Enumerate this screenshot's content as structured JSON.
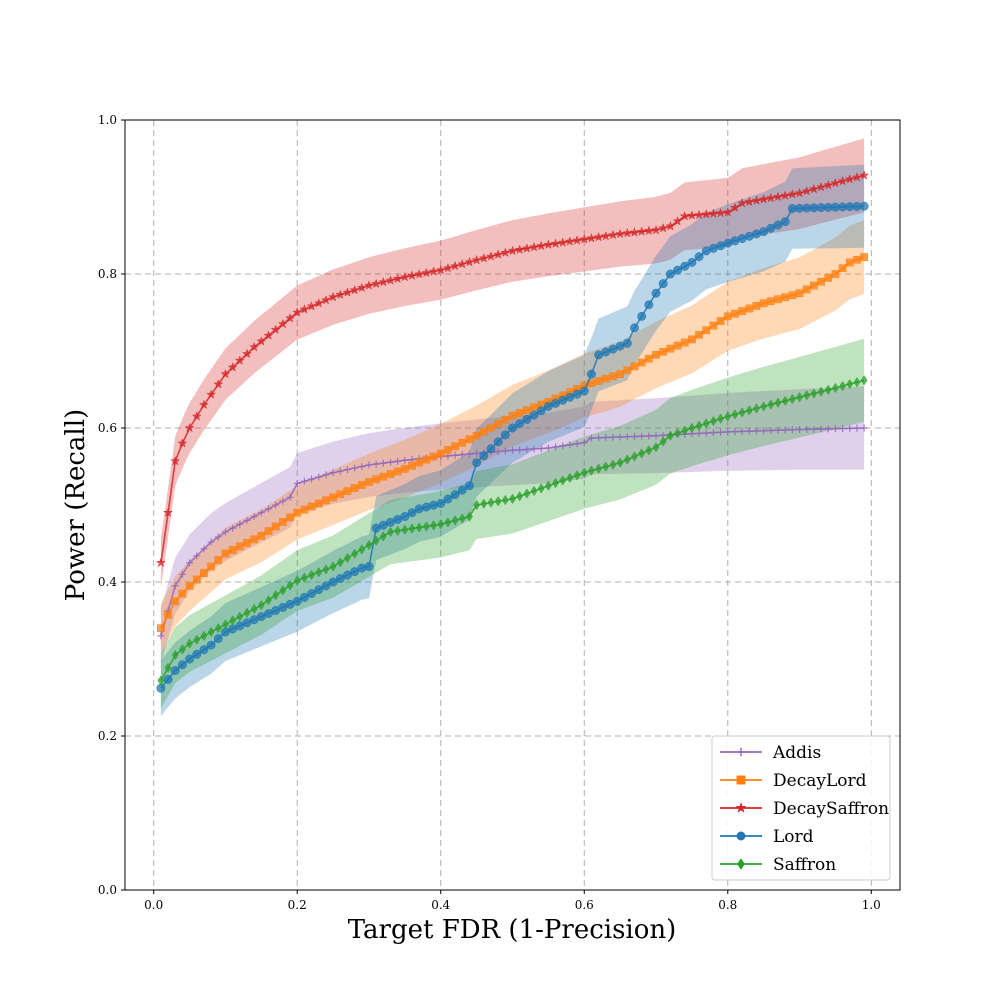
{
  "chart_data": {
    "type": "line",
    "xlabel": "Target FDR (1-Precision)",
    "ylabel": "Power (Recall)",
    "xlim": [
      -0.04,
      1.04
    ],
    "ylim": [
      0.0,
      1.0
    ],
    "xticks": [
      0.0,
      0.2,
      0.4,
      0.6,
      0.8,
      1.0
    ],
    "yticks": [
      0.0,
      0.2,
      0.4,
      0.6,
      0.8,
      1.0
    ],
    "xtick_labels": [
      "0.0",
      "0.2",
      "0.4",
      "0.6",
      "0.8",
      "1.0"
    ],
    "ytick_labels": [
      "0.0",
      "0.2",
      "0.4",
      "0.6",
      "0.8",
      "1.0"
    ],
    "grid": true,
    "legend_position": "bottom-right",
    "x_start": 0.01,
    "x_step": 0.01,
    "series": [
      {
        "name": "Addis",
        "color": "#9467bd",
        "marker": "plus",
        "knots": [
          [
            0.01,
            0.33
          ],
          [
            0.03,
            0.395
          ],
          [
            0.05,
            0.425
          ],
          [
            0.08,
            0.452
          ],
          [
            0.1,
            0.465
          ],
          [
            0.14,
            0.485
          ],
          [
            0.18,
            0.505
          ],
          [
            0.19,
            0.51
          ],
          [
            0.2,
            0.528
          ],
          [
            0.25,
            0.542
          ],
          [
            0.3,
            0.552
          ],
          [
            0.35,
            0.558
          ],
          [
            0.4,
            0.563
          ],
          [
            0.45,
            0.567
          ],
          [
            0.5,
            0.571
          ],
          [
            0.55,
            0.574
          ],
          [
            0.6,
            0.581
          ],
          [
            0.61,
            0.587
          ],
          [
            0.7,
            0.59
          ],
          [
            0.8,
            0.595
          ],
          [
            0.9,
            0.598
          ],
          [
            0.99,
            0.6
          ]
        ],
        "band": 0.045
      },
      {
        "name": "DecayLord",
        "color": "#ff7f0e",
        "marker": "square",
        "knots": [
          [
            0.01,
            0.34
          ],
          [
            0.03,
            0.375
          ],
          [
            0.05,
            0.395
          ],
          [
            0.08,
            0.42
          ],
          [
            0.1,
            0.437
          ],
          [
            0.15,
            0.46
          ],
          [
            0.2,
            0.49
          ],
          [
            0.25,
            0.51
          ],
          [
            0.3,
            0.53
          ],
          [
            0.35,
            0.547
          ],
          [
            0.4,
            0.567
          ],
          [
            0.45,
            0.59
          ],
          [
            0.5,
            0.616
          ],
          [
            0.55,
            0.634
          ],
          [
            0.6,
            0.655
          ],
          [
            0.65,
            0.67
          ],
          [
            0.7,
            0.695
          ],
          [
            0.75,
            0.715
          ],
          [
            0.8,
            0.745
          ],
          [
            0.85,
            0.762
          ],
          [
            0.9,
            0.775
          ],
          [
            0.95,
            0.8
          ],
          [
            0.97,
            0.815
          ],
          [
            0.99,
            0.822
          ]
        ],
        "band": 0.04
      },
      {
        "name": "DecaySaffron",
        "color": "#d62728",
        "marker": "star",
        "knots": [
          [
            0.01,
            0.425
          ],
          [
            0.02,
            0.49
          ],
          [
            0.03,
            0.557
          ],
          [
            0.04,
            0.58
          ],
          [
            0.05,
            0.6
          ],
          [
            0.07,
            0.63
          ],
          [
            0.1,
            0.67
          ],
          [
            0.14,
            0.705
          ],
          [
            0.18,
            0.735
          ],
          [
            0.2,
            0.75
          ],
          [
            0.25,
            0.77
          ],
          [
            0.3,
            0.785
          ],
          [
            0.35,
            0.796
          ],
          [
            0.4,
            0.805
          ],
          [
            0.45,
            0.818
          ],
          [
            0.5,
            0.83
          ],
          [
            0.55,
            0.838
          ],
          [
            0.6,
            0.845
          ],
          [
            0.65,
            0.852
          ],
          [
            0.7,
            0.857
          ],
          [
            0.72,
            0.862
          ],
          [
            0.74,
            0.875
          ],
          [
            0.8,
            0.88
          ],
          [
            0.82,
            0.892
          ],
          [
            0.85,
            0.897
          ],
          [
            0.9,
            0.905
          ],
          [
            0.95,
            0.918
          ],
          [
            0.99,
            0.928
          ]
        ],
        "band": 0.04
      },
      {
        "name": "Lord",
        "color": "#1f77b4",
        "marker": "circle",
        "knots": [
          [
            0.01,
            0.262
          ],
          [
            0.03,
            0.285
          ],
          [
            0.05,
            0.3
          ],
          [
            0.08,
            0.318
          ],
          [
            0.1,
            0.335
          ],
          [
            0.15,
            0.355
          ],
          [
            0.2,
            0.375
          ],
          [
            0.25,
            0.4
          ],
          [
            0.29,
            0.418
          ],
          [
            0.3,
            0.42
          ],
          [
            0.31,
            0.47
          ],
          [
            0.35,
            0.485
          ],
          [
            0.37,
            0.495
          ],
          [
            0.4,
            0.502
          ],
          [
            0.44,
            0.525
          ],
          [
            0.45,
            0.555
          ],
          [
            0.5,
            0.6
          ],
          [
            0.55,
            0.628
          ],
          [
            0.6,
            0.648
          ],
          [
            0.61,
            0.67
          ],
          [
            0.62,
            0.695
          ],
          [
            0.66,
            0.71
          ],
          [
            0.67,
            0.73
          ],
          [
            0.7,
            0.775
          ],
          [
            0.72,
            0.8
          ],
          [
            0.75,
            0.815
          ],
          [
            0.77,
            0.83
          ],
          [
            0.8,
            0.84
          ],
          [
            0.85,
            0.855
          ],
          [
            0.88,
            0.868
          ],
          [
            0.89,
            0.885
          ],
          [
            0.99,
            0.888
          ]
        ],
        "band": 0.045
      },
      {
        "name": "Saffron",
        "color": "#2ca02c",
        "marker": "diamond",
        "knots": [
          [
            0.01,
            0.272
          ],
          [
            0.03,
            0.305
          ],
          [
            0.05,
            0.32
          ],
          [
            0.08,
            0.335
          ],
          [
            0.1,
            0.345
          ],
          [
            0.15,
            0.37
          ],
          [
            0.2,
            0.402
          ],
          [
            0.25,
            0.42
          ],
          [
            0.3,
            0.448
          ],
          [
            0.33,
            0.465
          ],
          [
            0.4,
            0.475
          ],
          [
            0.44,
            0.485
          ],
          [
            0.45,
            0.5
          ],
          [
            0.5,
            0.508
          ],
          [
            0.55,
            0.525
          ],
          [
            0.6,
            0.542
          ],
          [
            0.65,
            0.555
          ],
          [
            0.7,
            0.575
          ],
          [
            0.72,
            0.59
          ],
          [
            0.75,
            0.6
          ],
          [
            0.8,
            0.615
          ],
          [
            0.85,
            0.628
          ],
          [
            0.9,
            0.64
          ],
          [
            0.95,
            0.652
          ],
          [
            0.99,
            0.662
          ]
        ],
        "band": 0.045
      }
    ]
  }
}
